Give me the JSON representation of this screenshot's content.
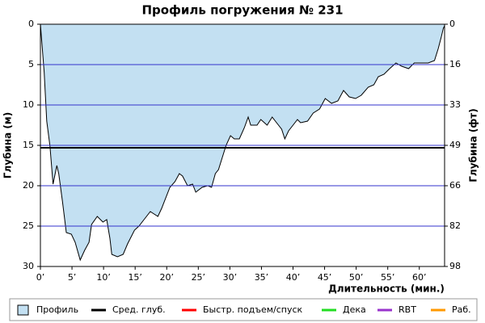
{
  "chart_data": {
    "type": "area",
    "title": "Профиль погружения № 231",
    "ylabel": "Глубина (м)",
    "y2label": "Глубина (фт)",
    "xlabel": "Длительность (мин.)",
    "x": [
      0,
      0.3,
      0.6,
      1,
      1.5,
      2.0,
      2.6,
      2.9,
      3.5,
      4.1,
      4.9,
      5.5,
      6.3,
      7.0,
      7.7,
      8.1,
      9.0,
      9.9,
      10.5,
      11.0,
      11.3,
      12.2,
      13.1,
      13.8,
      14.9,
      15.6,
      16.4,
      17.4,
      18.6,
      19.2,
      20.5,
      21.3,
      22.0,
      22.5,
      23.3,
      24.1,
      24.6,
      25.6,
      26.5,
      27.1,
      27.7,
      28.2,
      28.8,
      29.4,
      30.1,
      30.7,
      31.5,
      32.3,
      32.9,
      33.3,
      34.3,
      34.9,
      35.9,
      36.7,
      37.4,
      38.2,
      38.7,
      39.3,
      40.0,
      40.7,
      41.2,
      42.3,
      43.2,
      44.2,
      45.1,
      46.1,
      47.1,
      48.0,
      48.9,
      49.9,
      50.8,
      51.9,
      52.8,
      53.5,
      54.4,
      55.3,
      56.3,
      57.2,
      58.3,
      59.2,
      60.2,
      61.4,
      62.4,
      63.0,
      63.5,
      63.8,
      64
    ],
    "series": [
      {
        "name": "Профиль",
        "color": "#c3e0f2",
        "values": [
          0,
          3,
          6,
          12,
          15,
          19.8,
          17.5,
          18.5,
          22,
          25.8,
          26,
          27,
          29.2,
          28,
          27,
          24.8,
          23.8,
          24.5,
          24.2,
          26.5,
          28.5,
          28.8,
          28.5,
          27.2,
          25.5,
          25,
          24.2,
          23.2,
          23.8,
          22.8,
          20.2,
          19.5,
          18.5,
          18.8,
          20,
          19.8,
          20.8,
          20.2,
          20,
          20.2,
          18.5,
          18,
          16.5,
          15,
          13.8,
          14.2,
          14.2,
          12.8,
          11.5,
          12.5,
          12.5,
          11.8,
          12.5,
          11.5,
          12.2,
          13,
          14.2,
          13.2,
          12.5,
          11.8,
          12.2,
          12,
          11,
          10.5,
          9.2,
          9.8,
          9.5,
          8.2,
          9,
          9.2,
          8.8,
          7.8,
          7.5,
          6.5,
          6.2,
          5.5,
          4.8,
          5.2,
          5.5,
          4.8,
          4.8,
          4.8,
          4.5,
          3,
          1.5,
          0.5,
          0.2
        ]
      }
    ],
    "avg_depth": 15.3,
    "legend": [
      {
        "name": "Профиль",
        "color": "#c3e0f2"
      },
      {
        "name": "Сред. глуб.",
        "color": "#000000"
      },
      {
        "name": "Быстр. подъем/спуск",
        "color": "#ff0000"
      },
      {
        "name": "Дека",
        "color": "#22dd22"
      },
      {
        "name": "RBT",
        "color": "#9933cc"
      },
      {
        "name": "Раб.",
        "color": "#ff9900"
      }
    ],
    "xlim": [
      0,
      64
    ],
    "ylim": [
      0,
      30
    ],
    "y2lim": [
      0,
      98.4
    ],
    "y_inverted": true,
    "xticks": [
      {
        "value": 0,
        "label": "0’"
      },
      {
        "value": 5,
        "label": "5’"
      },
      {
        "value": 10,
        "label": "10’"
      },
      {
        "value": 15,
        "label": "15’"
      },
      {
        "value": 20,
        "label": "20’"
      },
      {
        "value": 25,
        "label": "25’"
      },
      {
        "value": 30,
        "label": "30’"
      },
      {
        "value": 35,
        "label": "35’"
      },
      {
        "value": 40,
        "label": "40’"
      },
      {
        "value": 45,
        "label": "45’"
      },
      {
        "value": 50,
        "label": "50’"
      },
      {
        "value": 55,
        "label": "55’"
      },
      {
        "value": 60,
        "label": "60’"
      }
    ],
    "yticks": [
      0,
      5,
      10,
      15,
      20,
      25,
      30
    ],
    "y2ticks": [
      0,
      {
        "value": 16.4,
        "label": "16"
      },
      {
        "value": 32.8,
        "label": "33"
      },
      {
        "value": 49.2,
        "label": "49"
      },
      {
        "value": 65.6,
        "label": "66"
      },
      {
        "value": 82.0,
        "label": "82"
      },
      {
        "value": 98.4,
        "label": "98"
      }
    ],
    "grid_color": "#3333cc"
  }
}
